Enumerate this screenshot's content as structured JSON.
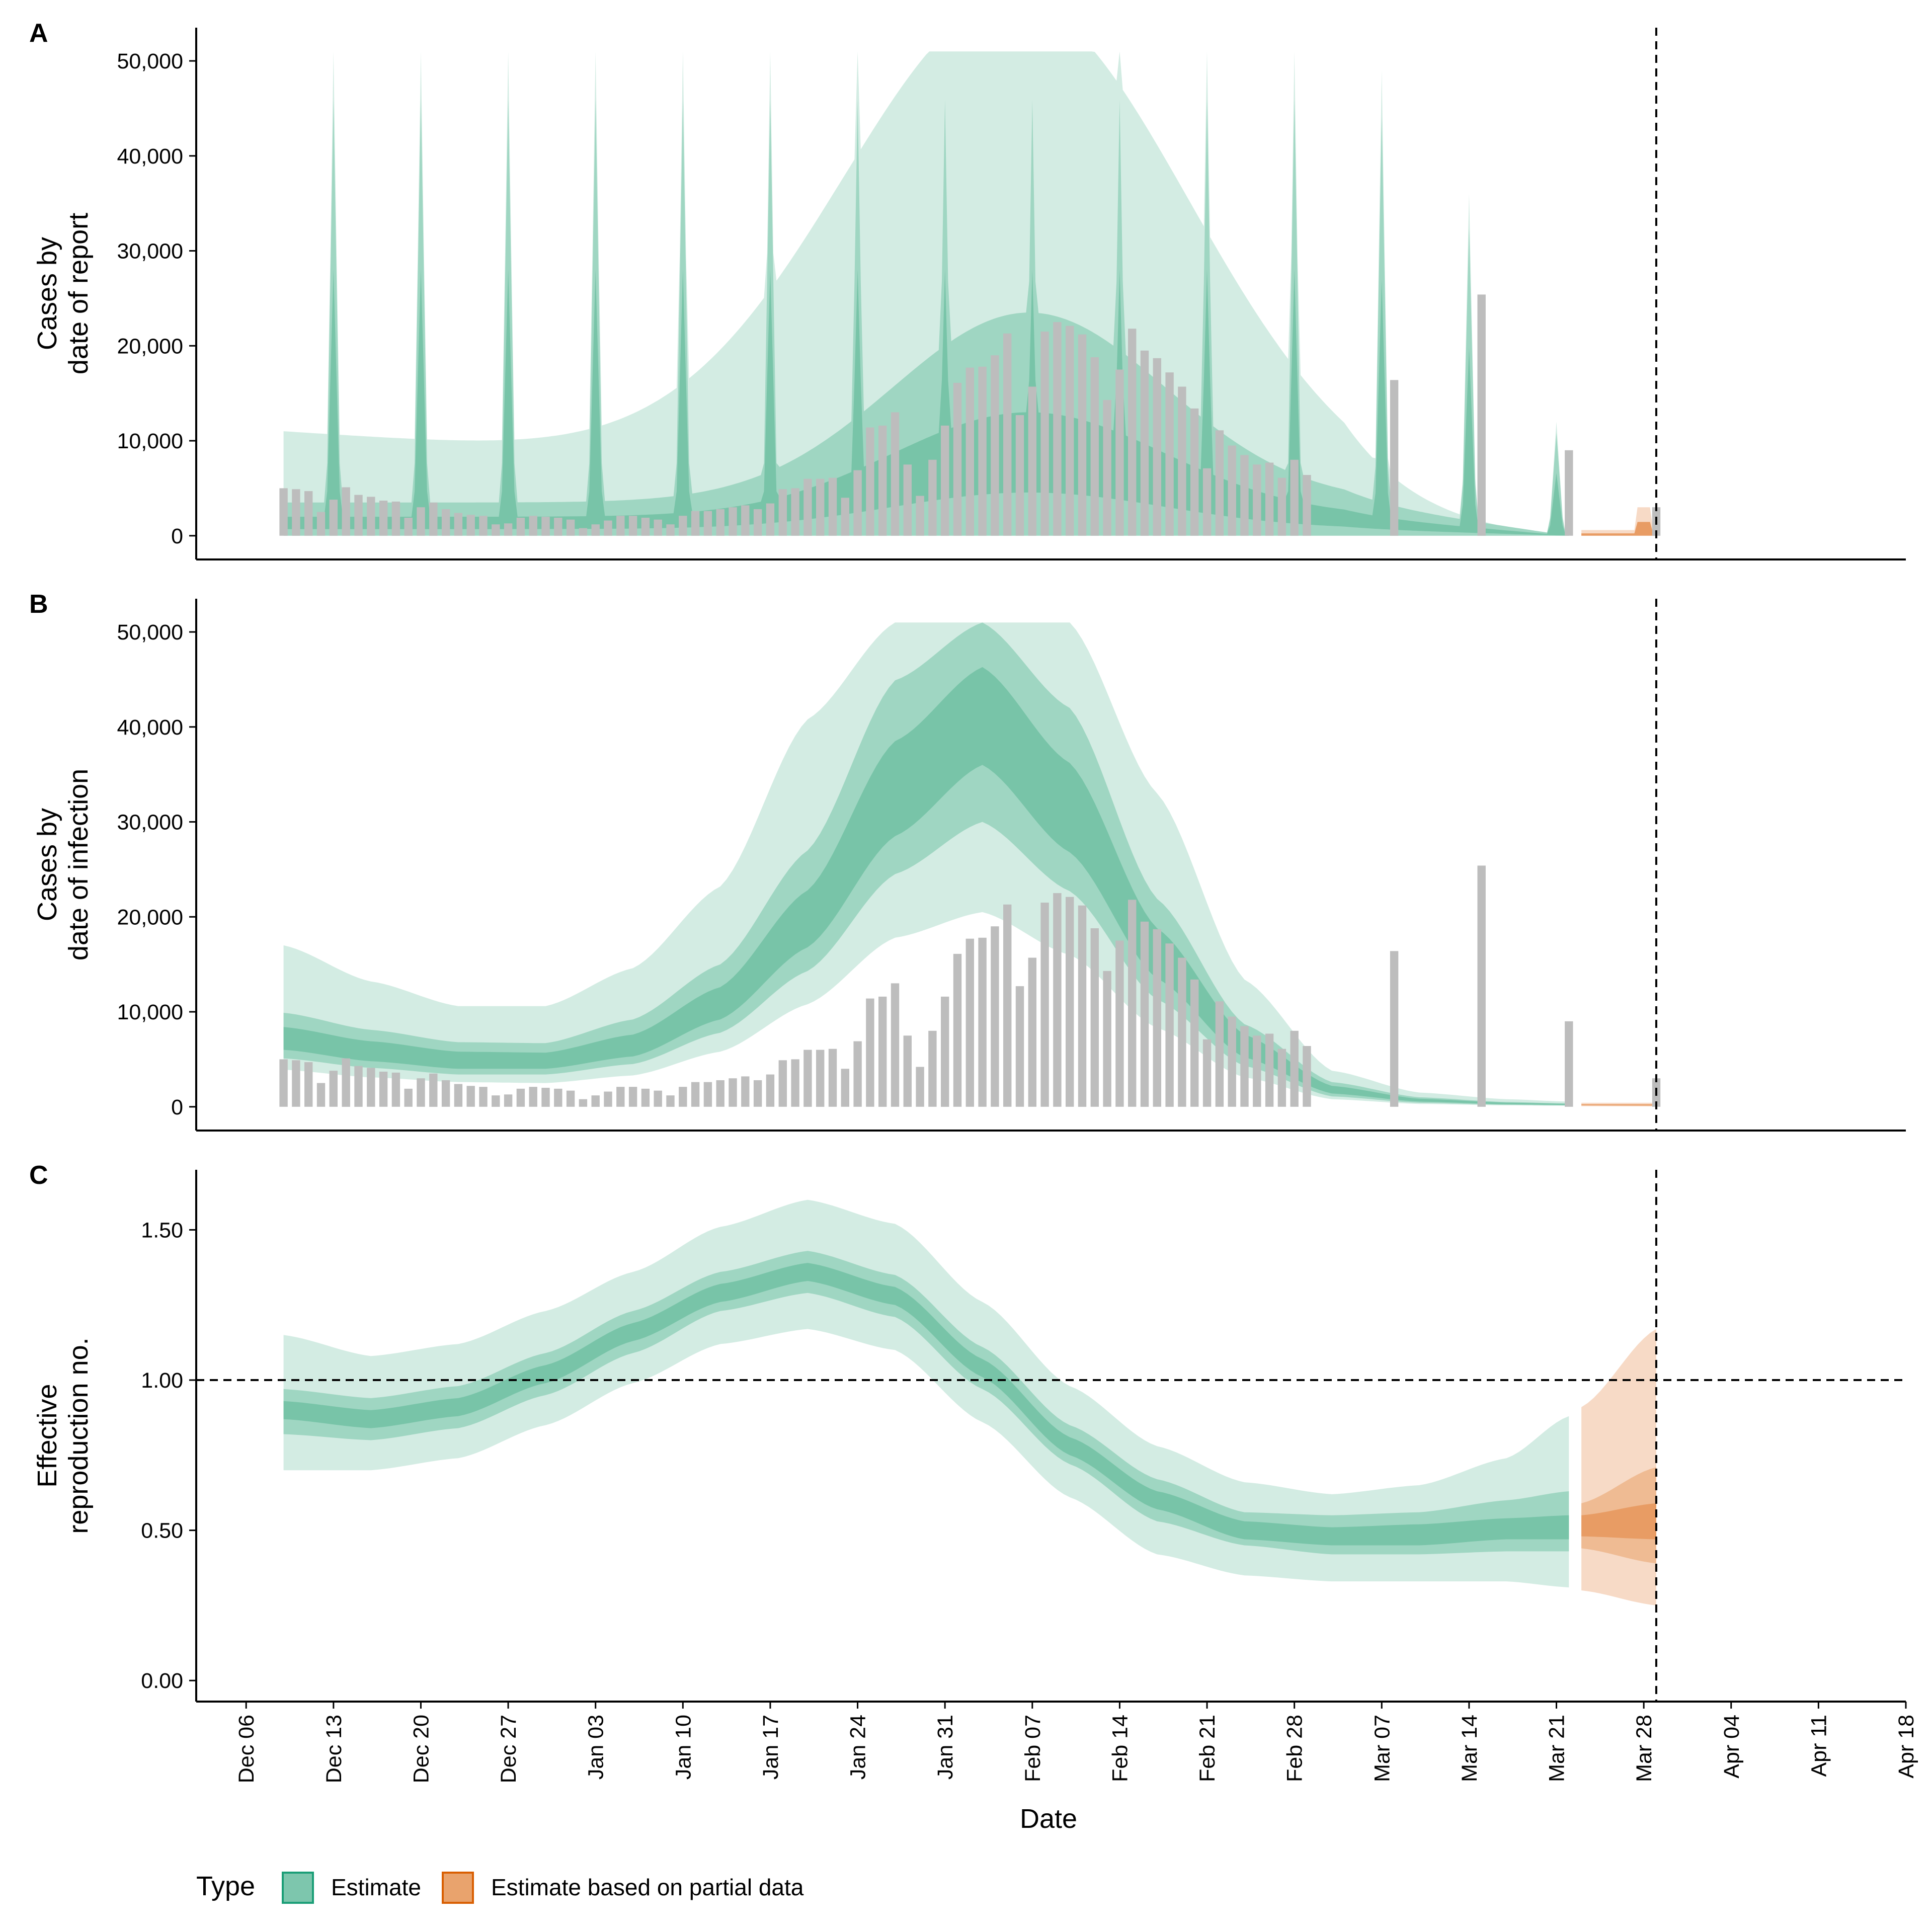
{
  "chart_data": [
    {
      "panel": "A",
      "type": "area",
      "ylabel": [
        "Cases by",
        "date of report"
      ],
      "ylim": [
        -2500,
        53500
      ],
      "yticks": [
        0,
        10000,
        20000,
        30000,
        40000,
        50000
      ],
      "ytick_labels": [
        "0",
        "10,000",
        "20,000",
        "30,000",
        "40,000",
        "50,000"
      ],
      "observed_cases": {
        "start": "2020-12-09",
        "values": [
          5000,
          4900,
          4700,
          2500,
          3800,
          5100,
          4300,
          4100,
          3700,
          3600,
          1900,
          3000,
          3500,
          2800,
          2400,
          2200,
          2100,
          1200,
          1300,
          1900,
          2100,
          2000,
          1900,
          1700,
          800,
          1200,
          1600,
          2100,
          2100,
          1900,
          1700,
          1200,
          2100,
          2600,
          2600,
          2800,
          3000,
          3200,
          2800,
          3400,
          4900,
          5000,
          6000,
          6000,
          6100,
          4000,
          6900,
          11400,
          11600,
          13000,
          7500,
          4200,
          8000,
          11600,
          16100,
          17700,
          17800,
          19000,
          21300,
          12700,
          15700,
          21500,
          22500,
          22100,
          21200,
          18800,
          14300,
          17500,
          21800,
          19500,
          18700,
          17200,
          15700,
          13400,
          7100,
          11100,
          9500,
          8500,
          7500,
          7700,
          6100,
          8000,
          6400,
          null,
          null,
          null,
          null,
          null,
          null,
          16400,
          null,
          null,
          null,
          null,
          null,
          null,
          25400,
          null,
          null,
          null,
          null,
          null,
          null,
          9000,
          null,
          null,
          null,
          null,
          null,
          null,
          3000
        ]
      },
      "estimate": {
        "start": "2020-12-09",
        "end": "2021-03-22",
        "spikes": [
          "2020-12-13",
          "2020-12-20",
          "2020-12-27",
          "2021-01-03",
          "2021-01-10",
          "2021-01-17",
          "2021-01-24",
          "2021-01-31",
          "2021-02-07",
          "2021-02-14",
          "2021-02-21",
          "2021-02-28",
          "2021-03-07",
          "2021-03-14",
          "2021-03-21"
        ],
        "spike_values": [
          51000,
          51000,
          51000,
          51000,
          51000,
          51000,
          51000,
          51000,
          51000,
          51000,
          51000,
          51000,
          49000,
          36000,
          12000
        ]
      },
      "partial_estimate": {
        "start": "2021-03-23",
        "end": "2021-03-29"
      }
    },
    {
      "panel": "B",
      "type": "area",
      "ylabel": [
        "Cases by",
        "date of infection"
      ],
      "ylim": [
        -2500,
        53500
      ],
      "yticks": [
        0,
        10000,
        20000,
        30000,
        40000,
        50000
      ],
      "ytick_labels": [
        "0",
        "10,000",
        "20,000",
        "30,000",
        "40,000",
        "50,000"
      ],
      "estimate": {
        "start": "2020-12-09",
        "end": "2021-03-22",
        "dates": [
          "2020-12-09",
          "2020-12-16",
          "2020-12-23",
          "2020-12-30",
          "2021-01-06",
          "2021-01-13",
          "2021-01-20",
          "2021-01-27",
          "2021-02-03",
          "2021-02-10",
          "2021-02-17",
          "2021-02-24",
          "2021-03-03",
          "2021-03-10",
          "2021-03-17",
          "2021-03-22"
        ],
        "median": [
          7200,
          5900,
          4900,
          4800,
          6400,
          10900,
          19600,
          33000,
          41000,
          31000,
          16000,
          6500,
          1800,
          700,
          350,
          250
        ],
        "lower_20": [
          6000,
          4800,
          4000,
          4000,
          5300,
          9200,
          16800,
          28500,
          36000,
          26800,
          13500,
          5200,
          1400,
          550,
          270,
          190
        ],
        "upper_20": [
          8400,
          6900,
          5800,
          5700,
          7600,
          12600,
          22800,
          38500,
          46300,
          36200,
          18800,
          7600,
          2200,
          850,
          430,
          300
        ],
        "lower_50": [
          5100,
          4100,
          3400,
          3400,
          4500,
          7800,
          14300,
          24500,
          30000,
          22700,
          11300,
          4300,
          1100,
          420,
          210,
          150
        ],
        "upper_50": [
          9900,
          8100,
          6800,
          6700,
          9200,
          15000,
          27000,
          44900,
          51000,
          42000,
          21900,
          8700,
          2600,
          1000,
          500,
          360
        ],
        "lower_90": [
          3900,
          3100,
          2600,
          2500,
          3300,
          5800,
          10800,
          17800,
          20500,
          16000,
          8300,
          3100,
          800,
          300,
          150,
          100
        ],
        "upper_90": [
          17000,
          13200,
          10600,
          10600,
          14600,
          23200,
          40800,
          51000,
          51000,
          51000,
          33000,
          13400,
          3800,
          1500,
          800,
          550
        ]
      },
      "partial_estimate": {
        "start": "2021-03-23",
        "end": "2021-03-29"
      }
    },
    {
      "panel": "C",
      "type": "area",
      "ylabel": [
        "Effective",
        "reproduction no."
      ],
      "ylim": [
        -0.07,
        1.7
      ],
      "yticks": [
        0,
        0.5,
        1.0,
        1.5
      ],
      "ytick_labels": [
        "0.00",
        "0.50",
        "1.00",
        "1.50"
      ],
      "reference_line": 1.0,
      "estimate": {
        "dates": [
          "2020-12-09",
          "2020-12-16",
          "2020-12-23",
          "2020-12-30",
          "2021-01-06",
          "2021-01-13",
          "2021-01-20",
          "2021-01-27",
          "2021-02-03",
          "2021-02-10",
          "2021-02-17",
          "2021-02-24",
          "2021-03-03",
          "2021-03-10",
          "2021-03-17",
          "2021-03-22"
        ],
        "median": [
          0.9,
          0.87,
          0.91,
          1.02,
          1.16,
          1.29,
          1.36,
          1.28,
          1.04,
          0.78,
          0.6,
          0.5,
          0.48,
          0.48,
          0.5,
          0.51
        ],
        "lower_20": [
          0.87,
          0.84,
          0.88,
          0.99,
          1.13,
          1.26,
          1.33,
          1.25,
          1.01,
          0.75,
          0.57,
          0.47,
          0.45,
          0.45,
          0.47,
          0.47
        ],
        "upper_20": [
          0.93,
          0.9,
          0.94,
          1.05,
          1.19,
          1.32,
          1.39,
          1.31,
          1.07,
          0.81,
          0.63,
          0.53,
          0.51,
          0.52,
          0.54,
          0.55
        ],
        "lower_50": [
          0.82,
          0.8,
          0.84,
          0.95,
          1.09,
          1.23,
          1.29,
          1.21,
          0.97,
          0.72,
          0.53,
          0.45,
          0.42,
          0.42,
          0.43,
          0.43
        ],
        "upper_50": [
          0.97,
          0.94,
          0.98,
          1.09,
          1.23,
          1.36,
          1.43,
          1.35,
          1.11,
          0.85,
          0.67,
          0.56,
          0.55,
          0.56,
          0.6,
          0.63
        ],
        "lower_90": [
          0.7,
          0.7,
          0.74,
          0.85,
          0.99,
          1.12,
          1.17,
          1.1,
          0.86,
          0.61,
          0.42,
          0.35,
          0.33,
          0.33,
          0.33,
          0.31
        ],
        "upper_90": [
          1.15,
          1.08,
          1.12,
          1.23,
          1.36,
          1.51,
          1.6,
          1.52,
          1.26,
          0.98,
          0.78,
          0.66,
          0.62,
          0.65,
          0.74,
          0.88
        ]
      },
      "partial_estimate": {
        "dates": [
          "2021-03-23",
          "2021-03-29"
        ],
        "median": [
          0.51,
          0.53
        ],
        "lower_20": [
          0.48,
          0.47
        ],
        "upper_20": [
          0.55,
          0.59
        ],
        "lower_50": [
          0.44,
          0.39
        ],
        "upper_50": [
          0.59,
          0.71
        ],
        "lower_90": [
          0.3,
          0.25
        ],
        "upper_90": [
          0.91,
          1.17
        ]
      }
    }
  ],
  "x_axis": {
    "label": "Date",
    "range": [
      "2020-12-02",
      "2021-04-18"
    ],
    "ticks": [
      "2020-12-06",
      "2020-12-13",
      "2020-12-20",
      "2020-12-27",
      "2021-01-03",
      "2021-01-10",
      "2021-01-17",
      "2021-01-24",
      "2021-01-31",
      "2021-02-07",
      "2021-02-14",
      "2021-02-21",
      "2021-02-28",
      "2021-03-07",
      "2021-03-14",
      "2021-03-21",
      "2021-03-28",
      "2021-04-04",
      "2021-04-11",
      "2021-04-18"
    ],
    "tick_labels": [
      "Dec 06",
      "Dec 13",
      "Dec 20",
      "Dec 27",
      "Jan 03",
      "Jan 10",
      "Jan 17",
      "Jan 24",
      "Jan 31",
      "Feb 07",
      "Feb 14",
      "Feb 21",
      "Feb 28",
      "Mar 07",
      "Mar 14",
      "Mar 21",
      "Mar 28",
      "Apr 04",
      "Apr 11",
      "Apr 18"
    ],
    "vertical_line": "2021-03-29"
  },
  "legend": {
    "title": "Type",
    "position": "bottom",
    "items": [
      {
        "label": "Estimate",
        "fill": "#7dc6ad",
        "stroke": "#1b9e77"
      },
      {
        "label": "Estimate based on partial data",
        "fill": "#e9a36d",
        "stroke": "#d95f02"
      }
    ]
  },
  "colors": {
    "estimate_90": "#d3ece3",
    "estimate_50": "#9fd6c2",
    "estimate_20": "#78c4a8",
    "partial_90": "#f7dac6",
    "partial_50": "#efbb93",
    "partial_20": "#e89c64",
    "bars": "#bdbdbd"
  }
}
